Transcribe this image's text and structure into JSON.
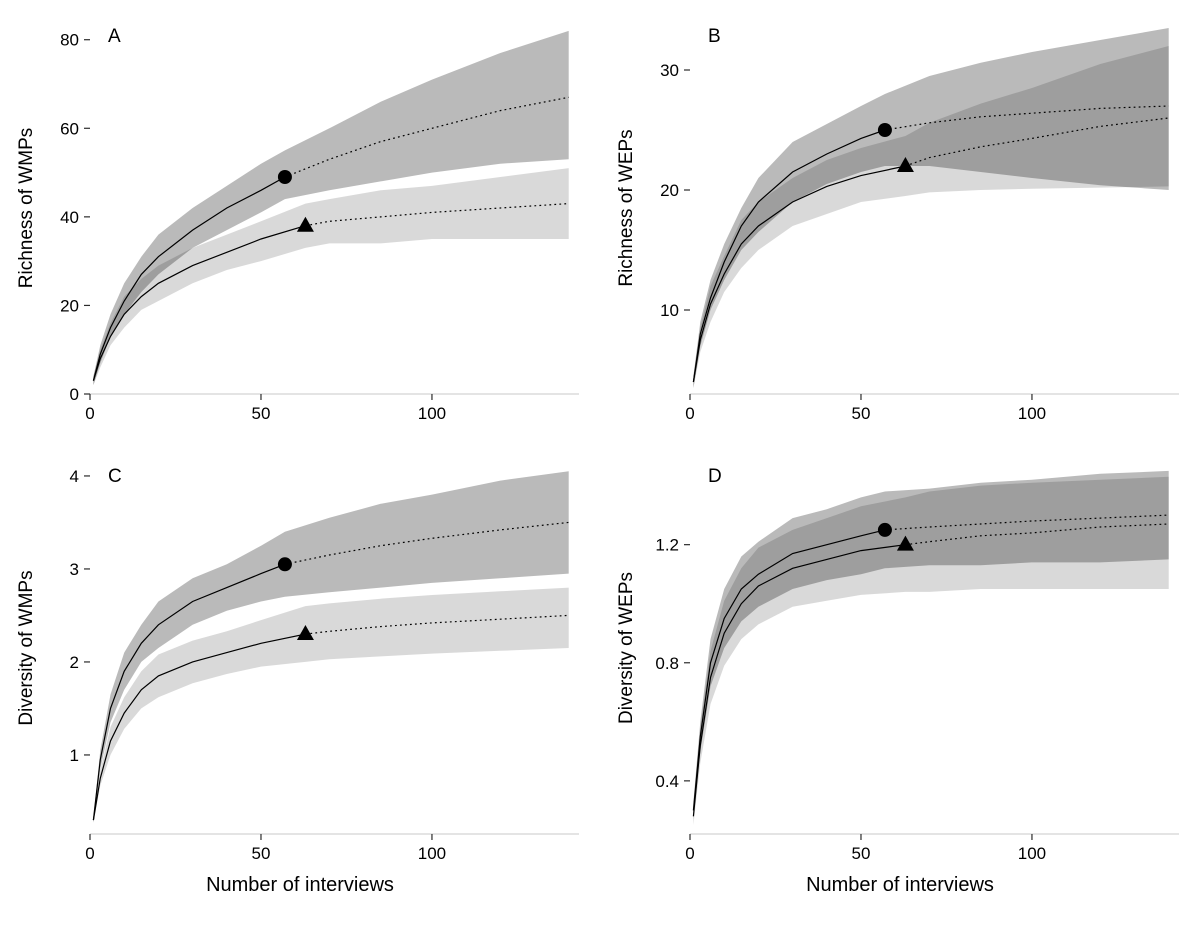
{
  "figure": {
    "xlabel_bottom_left": "Number of interviews",
    "xlabel_bottom_right": "Number of interviews",
    "background": "#ffffff",
    "line_color": "#000000",
    "axis_color": "#c9c9c9",
    "tick_color": "#2b2b2b",
    "band_dark": "#00000045",
    "band_light": "#00000026",
    "marker_color": "#000000"
  },
  "chart_data": [
    {
      "type": "line",
      "label": "A",
      "ylabel": "Richness of WMPs",
      "xlabel": "",
      "xlim": [
        0,
        143
      ],
      "xticks": [
        0,
        50,
        100
      ],
      "ylim": [
        0,
        84
      ],
      "yticks": [
        0,
        20,
        40,
        60,
        80
      ],
      "legend": "none",
      "grid": false,
      "series": [
        {
          "name": "circle-series-rarefaction-extrapolation",
          "marker": "circle",
          "band": "dark",
          "ref_x": 57,
          "ref_y": 49,
          "x": [
            1,
            3,
            6,
            10,
            15,
            20,
            30,
            40,
            50,
            57,
            70,
            85,
            100,
            120,
            140
          ],
          "y": [
            3,
            9,
            15,
            21,
            27,
            31,
            37,
            42,
            46,
            49,
            53,
            57,
            60,
            64,
            67
          ],
          "lower": [
            2,
            7,
            13,
            18,
            23,
            27,
            33,
            37,
            41,
            44,
            46,
            48,
            50,
            52,
            53
          ],
          "upper": [
            4,
            11,
            18,
            25,
            31,
            36,
            42,
            47,
            52,
            55,
            60,
            66,
            71,
            77,
            82
          ]
        },
        {
          "name": "triangle-series-rarefaction-extrapolation",
          "marker": "triangle",
          "band": "light",
          "ref_x": 63,
          "ref_y": 38,
          "x": [
            1,
            3,
            6,
            10,
            15,
            20,
            30,
            40,
            50,
            63,
            70,
            85,
            100,
            120,
            140
          ],
          "y": [
            3,
            8,
            13,
            18,
            22,
            25,
            29,
            32,
            35,
            38,
            39,
            40,
            41,
            42,
            43
          ],
          "lower": [
            2,
            6,
            11,
            15,
            19,
            21,
            25,
            28,
            30,
            33,
            34,
            34,
            35,
            35,
            35
          ],
          "upper": [
            4,
            10,
            16,
            22,
            26,
            29,
            33,
            36,
            39,
            43,
            44,
            46,
            47,
            49,
            51
          ]
        }
      ]
    },
    {
      "type": "line",
      "label": "B",
      "ylabel": "Richness of WEPs",
      "xlabel": "",
      "xlim": [
        0,
        143
      ],
      "xticks": [
        0,
        50,
        100
      ],
      "ylim": [
        3,
        34
      ],
      "yticks": [
        10,
        20,
        30
      ],
      "legend": "none",
      "grid": false,
      "series": [
        {
          "name": "circle-series-rarefaction-extrapolation",
          "marker": "circle",
          "band": "dark",
          "ref_x": 57,
          "ref_y": 25,
          "x": [
            1,
            3,
            6,
            10,
            15,
            20,
            30,
            40,
            50,
            57,
            70,
            85,
            100,
            120,
            140
          ],
          "y": [
            4,
            8,
            11,
            14,
            17,
            19,
            21.5,
            23,
            24.3,
            25,
            25.6,
            26.1,
            26.4,
            26.8,
            27
          ],
          "lower": [
            3.5,
            7,
            10,
            12.5,
            15,
            16.5,
            19,
            20.5,
            21.5,
            22,
            22,
            21.5,
            21,
            20.4,
            20
          ],
          "upper": [
            4.5,
            9,
            12.5,
            15.5,
            18.5,
            21,
            24,
            25.5,
            27,
            28,
            29.5,
            30.6,
            31.5,
            32.5,
            33.5
          ]
        },
        {
          "name": "triangle-series-rarefaction-extrapolation",
          "marker": "triangle",
          "band": "light",
          "ref_x": 63,
          "ref_y": 22,
          "x": [
            1,
            3,
            6,
            10,
            15,
            20,
            30,
            40,
            50,
            63,
            70,
            85,
            100,
            120,
            140
          ],
          "y": [
            4,
            7.5,
            10.5,
            13,
            15.5,
            17,
            19,
            20.3,
            21.2,
            22,
            22.7,
            23.6,
            24.3,
            25.3,
            26
          ],
          "lower": [
            3.5,
            6.5,
            9,
            11.5,
            13.5,
            15,
            17,
            18,
            19,
            19.5,
            19.8,
            20,
            20.1,
            20.2,
            20.3
          ],
          "upper": [
            4.5,
            8.5,
            12,
            14.5,
            17.5,
            19,
            21,
            22.5,
            23.5,
            24.5,
            25.6,
            27.2,
            28.5,
            30.5,
            32
          ]
        }
      ]
    },
    {
      "type": "line",
      "label": "C",
      "ylabel": "Diversity of WMPs",
      "xlabel": "Number of interviews",
      "xlim": [
        0,
        143
      ],
      "xticks": [
        0,
        50,
        100
      ],
      "ylim": [
        0.15,
        4.15
      ],
      "yticks": [
        1,
        2,
        3,
        4
      ],
      "legend": "none",
      "grid": false,
      "series": [
        {
          "name": "circle-series-rarefaction-extrapolation",
          "marker": "circle",
          "band": "dark",
          "ref_x": 57,
          "ref_y": 3.05,
          "x": [
            1,
            3,
            6,
            10,
            15,
            20,
            30,
            40,
            50,
            57,
            70,
            85,
            100,
            120,
            140
          ],
          "y": [
            0.3,
            0.95,
            1.5,
            1.9,
            2.2,
            2.4,
            2.65,
            2.8,
            2.95,
            3.05,
            3.15,
            3.25,
            3.33,
            3.42,
            3.5
          ],
          "lower": [
            0.27,
            0.85,
            1.35,
            1.7,
            2.0,
            2.15,
            2.4,
            2.55,
            2.65,
            2.7,
            2.75,
            2.8,
            2.85,
            2.9,
            2.95
          ],
          "upper": [
            0.33,
            1.05,
            1.65,
            2.1,
            2.4,
            2.65,
            2.9,
            3.05,
            3.25,
            3.4,
            3.55,
            3.7,
            3.8,
            3.95,
            4.05
          ]
        },
        {
          "name": "triangle-series-rarefaction-extrapolation",
          "marker": "triangle",
          "band": "light",
          "ref_x": 63,
          "ref_y": 2.3,
          "x": [
            1,
            3,
            6,
            10,
            15,
            20,
            30,
            40,
            50,
            63,
            70,
            85,
            100,
            120,
            140
          ],
          "y": [
            0.3,
            0.75,
            1.15,
            1.45,
            1.7,
            1.85,
            2.0,
            2.1,
            2.2,
            2.3,
            2.33,
            2.38,
            2.42,
            2.46,
            2.5
          ],
          "lower": [
            0.27,
            0.67,
            1.0,
            1.28,
            1.5,
            1.62,
            1.77,
            1.87,
            1.95,
            2.0,
            2.03,
            2.06,
            2.09,
            2.12,
            2.15
          ],
          "upper": [
            0.33,
            0.83,
            1.3,
            1.62,
            1.9,
            2.08,
            2.23,
            2.33,
            2.45,
            2.6,
            2.63,
            2.68,
            2.72,
            2.76,
            2.8
          ]
        }
      ]
    },
    {
      "type": "line",
      "label": "D",
      "ylabel": "Diversity of WEPs",
      "xlabel": "Number of interviews",
      "xlim": [
        0,
        143
      ],
      "xticks": [
        0,
        50,
        100
      ],
      "ylim": [
        0.22,
        1.48
      ],
      "yticks": [
        0.4,
        0.8,
        1.2
      ],
      "legend": "none",
      "grid": false,
      "series": [
        {
          "name": "circle-series-rarefaction-extrapolation",
          "marker": "circle",
          "band": "dark",
          "ref_x": 57,
          "ref_y": 1.25,
          "x": [
            1,
            3,
            6,
            10,
            15,
            20,
            30,
            40,
            50,
            57,
            70,
            85,
            100,
            120,
            140
          ],
          "y": [
            0.3,
            0.55,
            0.8,
            0.95,
            1.05,
            1.1,
            1.17,
            1.2,
            1.23,
            1.25,
            1.26,
            1.27,
            1.28,
            1.29,
            1.3
          ],
          "lower": [
            0.27,
            0.5,
            0.72,
            0.85,
            0.94,
            0.99,
            1.05,
            1.08,
            1.1,
            1.12,
            1.13,
            1.13,
            1.14,
            1.14,
            1.15
          ],
          "upper": [
            0.33,
            0.6,
            0.88,
            1.05,
            1.16,
            1.21,
            1.29,
            1.32,
            1.36,
            1.38,
            1.39,
            1.41,
            1.42,
            1.44,
            1.45
          ]
        },
        {
          "name": "triangle-series-rarefaction-extrapolation",
          "marker": "triangle",
          "band": "light",
          "ref_x": 63,
          "ref_y": 1.2,
          "x": [
            1,
            3,
            6,
            10,
            15,
            20,
            30,
            40,
            50,
            63,
            70,
            85,
            100,
            120,
            140
          ],
          "y": [
            0.28,
            0.52,
            0.75,
            0.9,
            1.0,
            1.06,
            1.12,
            1.15,
            1.18,
            1.2,
            1.21,
            1.23,
            1.24,
            1.26,
            1.27
          ],
          "lower": [
            0.25,
            0.46,
            0.66,
            0.79,
            0.88,
            0.93,
            0.99,
            1.01,
            1.03,
            1.04,
            1.04,
            1.05,
            1.05,
            1.05,
            1.05
          ],
          "upper": [
            0.31,
            0.58,
            0.84,
            1.01,
            1.12,
            1.19,
            1.25,
            1.29,
            1.33,
            1.36,
            1.38,
            1.4,
            1.41,
            1.42,
            1.43
          ]
        }
      ]
    }
  ]
}
